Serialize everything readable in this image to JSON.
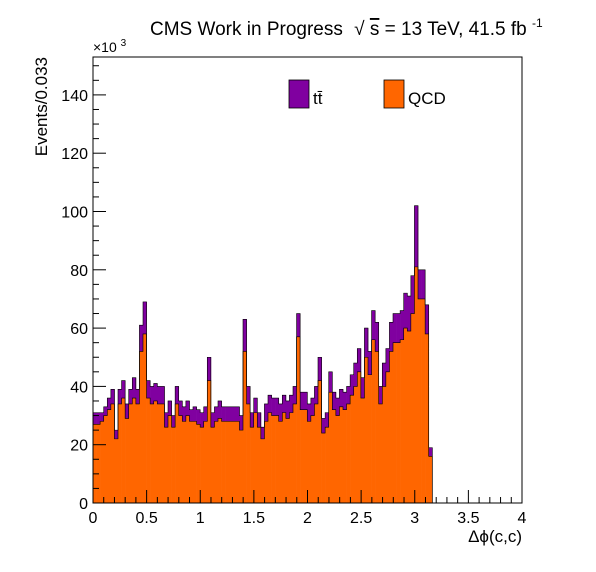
{
  "chart_data": {
    "type": "histogram",
    "stacked": true,
    "title": {
      "main": "CMS Work in Progress",
      "sqrt_sym": "√",
      "s": "s",
      "energy": " = 13 TeV, 41.5 fb",
      "exponent": "-1"
    },
    "xlabel": "Δϕ(c,c)",
    "ylabel": "Events/0.033",
    "y_multiplier": "×10",
    "y_multiplier_exp": "3",
    "xlim": [
      0,
      4
    ],
    "ylim": [
      0,
      153
    ],
    "xticks": [
      0,
      0.5,
      1,
      1.5,
      2,
      2.5,
      3,
      3.5,
      4
    ],
    "xtick_labels": [
      "0",
      "0.5",
      "1",
      "1.5",
      "2",
      "2.5",
      "3",
      "3.5",
      "4"
    ],
    "yticks": [
      0,
      20,
      40,
      60,
      80,
      100,
      120,
      140
    ],
    "ytick_labels": [
      "0",
      "20",
      "40",
      "60",
      "80",
      "100",
      "120",
      "140"
    ],
    "bin_width": 0.0333,
    "legend_position": "top",
    "series": [
      {
        "name": "QCD",
        "color": "#ff6600",
        "values": [
          27,
          27,
          28,
          30,
          32,
          34,
          22,
          34,
          36,
          29,
          34,
          36,
          34,
          52,
          58,
          36,
          34,
          35,
          34,
          34,
          26,
          30,
          26,
          34,
          30,
          28,
          30,
          28,
          28,
          27,
          26,
          28,
          42,
          26,
          28,
          29,
          28,
          28,
          28,
          28,
          28,
          25,
          52,
          34,
          26,
          31,
          26,
          22,
          28,
          31,
          30,
          30,
          28,
          31,
          29,
          31,
          34,
          57,
          32,
          32,
          28,
          30,
          34,
          42,
          24,
          26,
          38,
          32,
          30,
          33,
          32,
          34,
          37,
          40,
          45,
          36,
          50,
          44,
          56,
          52,
          34,
          40,
          45,
          52,
          55,
          55,
          56,
          60,
          59,
          65,
          81,
          70,
          70,
          58,
          16
        ]
      },
      {
        "name": "tt̄",
        "color": "#8000a0",
        "values": [
          4,
          4,
          3,
          3,
          4,
          5,
          3,
          5,
          6,
          5,
          5,
          7,
          5,
          9,
          11,
          6,
          6,
          6,
          6,
          6,
          5,
          5,
          4,
          6,
          5,
          5,
          5,
          4,
          5,
          5,
          5,
          5,
          8,
          5,
          5,
          6,
          5,
          5,
          5,
          5,
          5,
          5,
          11,
          6,
          5,
          5,
          5,
          4,
          6,
          6,
          6,
          6,
          6,
          6,
          6,
          6,
          6,
          8,
          6,
          6,
          6,
          6,
          6,
          8,
          5,
          5,
          7,
          6,
          6,
          6,
          6,
          6,
          7,
          8,
          8,
          7,
          10,
          8,
          10,
          10,
          6,
          8,
          8,
          10,
          10,
          10,
          10,
          12,
          12,
          13,
          21,
          10,
          10,
          10,
          3
        ]
      }
    ]
  }
}
